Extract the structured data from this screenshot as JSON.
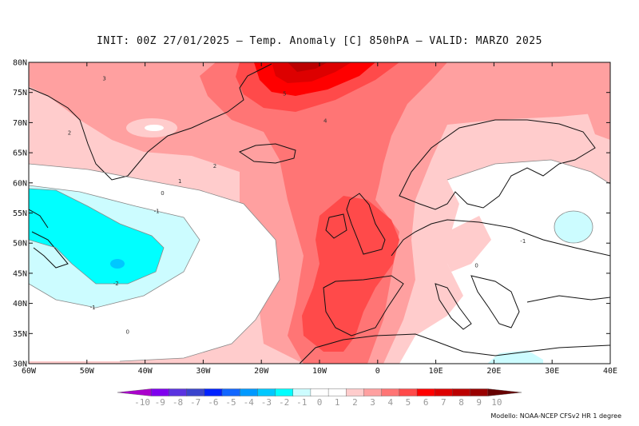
{
  "header": {
    "title": "INIT: 00Z 27/01/2025 – Temp. Anomaly [C] 850hPA – VALID: MARZO 2025"
  },
  "axes": {
    "lat_ticks": [
      "80N",
      "75N",
      "70N",
      "65N",
      "60N",
      "55N",
      "50N",
      "45N",
      "40N",
      "35N",
      "30N"
    ],
    "lon_ticks": [
      "60W",
      "50W",
      "40W",
      "30W",
      "20W",
      "10W",
      "0",
      "10E",
      "20E",
      "30E",
      "40E"
    ],
    "lon_range": [
      -60,
      40
    ],
    "lat_range": [
      30,
      80
    ]
  },
  "colors": {
    "n10": "#aa00cc",
    "n9": "#7f00ee",
    "n8": "#5a33e0",
    "n7": "#3a44cc",
    "n6": "#0022ff",
    "n5": "#1166ff",
    "n4": "#0099ff",
    "n3": "#00c8ff",
    "n2": "#00ffff",
    "n1": "#ccfcff",
    "z0": "#ffffff",
    "p1": "#ffffff",
    "p2": "#ffcccc",
    "p3": "#ffa0a0",
    "p4": "#ff7575",
    "p5": "#ff4a4a",
    "p6": "#ff0000",
    "p7": "#dd0000",
    "p8": "#bb0000",
    "p9": "#990000",
    "p10": "#660000"
  },
  "colorbar": {
    "labels": [
      "-10",
      "-9",
      "-8",
      "-7",
      "-6",
      "-5",
      "-4",
      "-3",
      "-2",
      "-1",
      "0",
      "1",
      "2",
      "3",
      "4",
      "5",
      "6",
      "7",
      "8",
      "9",
      "10"
    ],
    "colors": [
      "#aa00cc",
      "#7f00ee",
      "#5a33e0",
      "#3a44cc",
      "#0022ff",
      "#1166ff",
      "#0099ff",
      "#00c8ff",
      "#00ffff",
      "#ccfcff",
      "#ffffff",
      "#ffffff",
      "#ffcccc",
      "#ffa0a0",
      "#ff7575",
      "#ff4a4a",
      "#ff0000",
      "#dd0000",
      "#bb0000",
      "#990000",
      "#660000"
    ]
  },
  "contour_labels": [
    {
      "text": "3",
      "lon": -47,
      "lat": 77
    },
    {
      "text": "5",
      "lon": -16,
      "lat": 74.5
    },
    {
      "text": "4",
      "lon": -9,
      "lat": 70
    },
    {
      "text": "2",
      "lon": -53,
      "lat": 68
    },
    {
      "text": "2",
      "lon": -28,
      "lat": 62.5
    },
    {
      "text": "1",
      "lon": -34,
      "lat": 60
    },
    {
      "text": "0",
      "lon": -37,
      "lat": 58
    },
    {
      "text": "-1",
      "lon": -38,
      "lat": 55
    },
    {
      "text": "-2",
      "lon": -45,
      "lat": 43
    },
    {
      "text": "-1",
      "lon": -49,
      "lat": 39
    },
    {
      "text": "0",
      "lon": -43,
      "lat": 35
    },
    {
      "text": "-1",
      "lon": 25,
      "lat": 50
    },
    {
      "text": "0",
      "lon": 17,
      "lat": 46
    }
  ],
  "credit": "Modello: NOAA-NCEP CFSv2 HR 1 degree"
}
